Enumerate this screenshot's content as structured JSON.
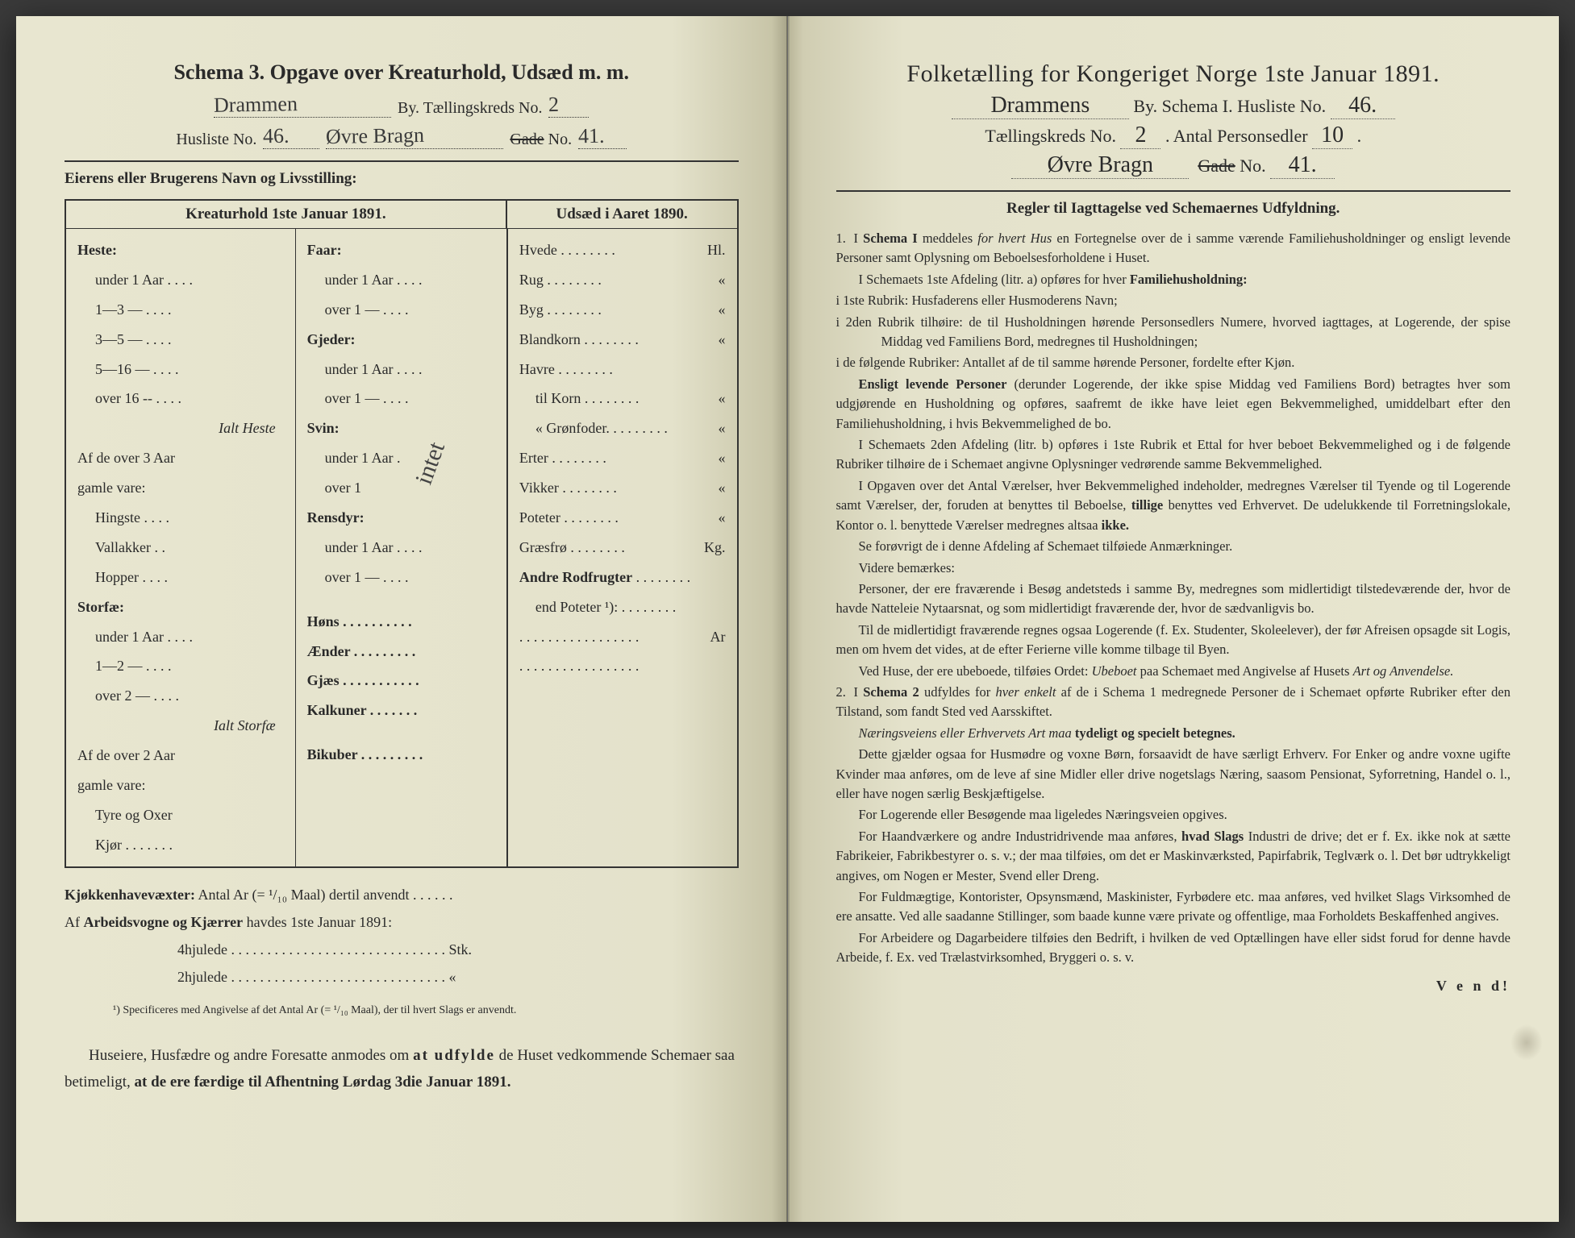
{
  "colors": {
    "paper": "#e4e2cb",
    "ink": "#2a2a2a",
    "handwriting": "#3a3a3a",
    "background": "#3a3a3a"
  },
  "left": {
    "title": "Schema 3.  Opgave over Kreaturhold, Udsæd m. m.",
    "header": {
      "city_hw": "Drammen",
      "by_label": "By.  Tællingskreds No.",
      "kreds_hw": "2",
      "husliste_label": "Husliste No.",
      "husliste_hw": "46.",
      "street_hw": "Øvre Bragn",
      "gade_label": "Gade No.",
      "gade_strike": true,
      "gade_hw": "41."
    },
    "owner_label": "Eierens eller Brugerens Navn og Livsstilling:",
    "table": {
      "head_left": "Kreaturhold 1ste Januar 1891.",
      "head_right": "Udsæd i Aaret 1890.",
      "col1": {
        "heste": "Heste:",
        "heste_items": [
          "under 1 Aar . . . .",
          "1—3   —   . . . .",
          "3—5   —   . . . .",
          "5—16  —   . . . .",
          "over 16 --  . . . ."
        ],
        "ialt_heste": "Ialt Heste",
        "af3_1": "Af de over 3 Aar",
        "af3_2": "gamle vare:",
        "af3_items": [
          "Hingste . . . .",
          "Vallakker . .",
          "Hopper . . . ."
        ],
        "storfae": "Storfæ:",
        "storfae_items": [
          "under 1 Aar . . . .",
          "1—2   —   . . . .",
          "over 2   —   . . . ."
        ],
        "ialt_storfae": "Ialt Storfæ",
        "af2_1": "Af de over 2 Aar",
        "af2_2": "gamle vare:",
        "af2_items": [
          "Tyre og Oxer",
          "Kjør . . . . . . ."
        ]
      },
      "col2": {
        "faar": "Faar:",
        "faar_items": [
          "under 1 Aar . . . .",
          "over 1   —   . . . ."
        ],
        "gjeder": "Gjeder:",
        "gjeder_items": [
          "under 1 Aar . . . .",
          "over 1   —   . . . ."
        ],
        "svin": "Svin:",
        "svin_items": [
          "under 1 Aar .",
          "over 1"
        ],
        "svin_hw": "intet",
        "rensdyr": "Rensdyr:",
        "rensdyr_items": [
          "under 1 Aar . . . .",
          "over 1   —   . . . ."
        ],
        "hons": "Høns . . . . . . . . . .",
        "aender": "Ænder . . . . . . . . .",
        "gjaes": "Gjæs . . . . . . . . . . .",
        "kalkuner": "Kalkuner . . . . . . .",
        "bikuber": "Bikuber . . . . . . . . ."
      },
      "col3": {
        "items": [
          {
            "label": "Hvede",
            "unit": "Hl."
          },
          {
            "label": "Rug",
            "unit": "«"
          },
          {
            "label": "Byg",
            "unit": "«"
          },
          {
            "label": "Blandkorn",
            "unit": "«"
          },
          {
            "label": "Havre",
            "unit": ""
          },
          {
            "label": "  til Korn",
            "unit": "«",
            "indent": true
          },
          {
            "label": "  «  Grønfoder.",
            "unit": "«",
            "indent": true
          },
          {
            "label": "Erter",
            "unit": "«"
          },
          {
            "label": "Vikker",
            "unit": "«"
          },
          {
            "label": "Poteter",
            "unit": "«"
          },
          {
            "label": "Græsfrø",
            "unit": "Kg."
          },
          {
            "label": "Andre Rodfrugter",
            "unit": "",
            "bold": true
          },
          {
            "label": "  end Poteter ¹):",
            "unit": "",
            "indent": true
          },
          {
            "label": "",
            "unit": "Ar",
            "dots_only": true
          },
          {
            "label": "",
            "unit": "",
            "dots_only": true
          }
        ]
      }
    },
    "below": {
      "l1a": "Kjøkkenhavevæxter:",
      "l1b": "  Antal Ar (= ¹/₁₀ Maal) dertil anvendt . . . . . .",
      "l2a": "Af ",
      "l2b": "Arbeidsvogne og Kjærrer",
      "l2c": " havdes 1ste Januar 1891:",
      "l3": "4hjulede . . . . . . . . . . . . . . . . . . . . . . . . . . . . . . Stk.",
      "l4": "2hjulede . . . . . . . . . . . . . . . . . . . . . . . . . . . . . .   «"
    },
    "footnote": "¹) Specificeres med Angivelse af det Antal Ar (= ¹/₁₀ Maal), der til hvert Slags er anvendt.",
    "footer": "Huseiere, Husfædre og andre Foresatte anmodes om at udfylde de Huset vedkommende Schemaer saa betimeligt, at de ere færdige til Afhentning Lørdag 3die Januar 1891."
  },
  "right": {
    "title": "Folketælling for Kongeriget Norge 1ste Januar 1891.",
    "line2_hw": "Drammens",
    "line2_rest": " By.   Schema I.   Husliste No.",
    "line2_hw2": "46.",
    "line3a": "Tællingskreds No.",
    "line3_hw1": "2",
    "line3b": ".   Antal Personsedler",
    "line3_hw2": "10",
    "line4_hw": "Øvre Bragn",
    "line4_label": "Gade No.",
    "line4_strike": true,
    "line4_hw2": "41.",
    "rules_title": "Regler til Iagttagelse ved Schemaernes Udfyldning.",
    "vend": "V e n d!"
  }
}
